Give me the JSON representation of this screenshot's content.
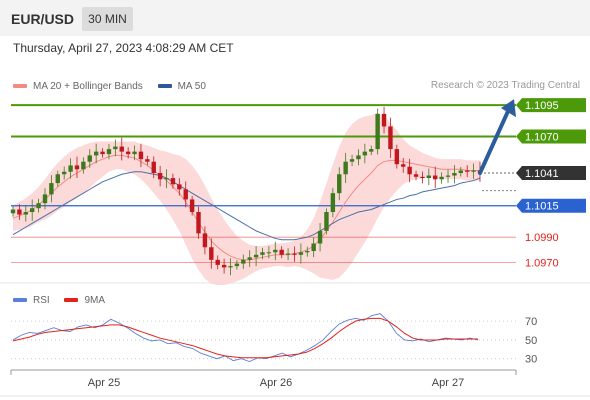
{
  "header": {
    "symbol": "EUR/USD",
    "timeframe": "30 MIN"
  },
  "datetime": "Thursday, April 27, 2023 4:08:29 AM CET",
  "legend": [
    {
      "label": "MA 20 + Bollinger Bands",
      "color": "#f28b82"
    },
    {
      "label": "MA 50",
      "color": "#2f5a99"
    }
  ],
  "credit": "Research © 2023 Trading Central",
  "rsi_legend": [
    {
      "label": "RSI",
      "color": "#5b7fd6"
    },
    {
      "label": "9MA",
      "color": "#e2231a"
    }
  ],
  "colors": {
    "resistance": "#4c9a0a",
    "support": "#2a62d0",
    "minor_support": "#e2231a",
    "current": "#333333",
    "arrow": "#2b5c9c",
    "bull_candle": "#3d7a1d",
    "bear_candle": "#c0181e",
    "bb_fill": "#fbd3d3"
  },
  "chart_data": [
    {
      "type": "candlestick",
      "y_range": [
        1.0952,
        1.1103
      ],
      "x_ticks": [
        "Apr 25",
        "Apr 26",
        "Apr 27"
      ],
      "levels": [
        {
          "value": 1.1095,
          "label": "1.1095",
          "kind": "resistance"
        },
        {
          "value": 1.107,
          "label": "1.1070",
          "kind": "resistance"
        },
        {
          "value": 1.1041,
          "label": "1.1041",
          "kind": "current"
        },
        {
          "value": 1.1015,
          "label": "1.1015",
          "kind": "support"
        },
        {
          "value": 1.099,
          "label": "1.0990",
          "kind": "minor_support"
        },
        {
          "value": 1.097,
          "label": "1.0970",
          "kind": "minor_support"
        }
      ],
      "close_path": [
        1.1012,
        1.1008,
        1.101,
        1.1013,
        1.1017,
        1.1024,
        1.1033,
        1.104,
        1.1042,
        1.1047,
        1.1044,
        1.105,
        1.1055,
        1.1058,
        1.1056,
        1.106,
        1.1062,
        1.1058,
        1.1056,
        1.1058,
        1.1052,
        1.105,
        1.1041,
        1.1036,
        1.1037,
        1.1032,
        1.1028,
        1.102,
        1.101,
        1.0993,
        1.0982,
        1.0972,
        1.0968,
        1.0966,
        1.0967,
        1.0969,
        1.0972,
        1.0974,
        1.0976,
        1.0978,
        1.0978,
        1.098,
        1.0976,
        1.0977,
        1.0976,
        1.0978,
        1.0979,
        1.0985,
        1.0995,
        1.101,
        1.1025,
        1.104,
        1.105,
        1.1052,
        1.1055,
        1.1058,
        1.106,
        1.1088,
        1.1078,
        1.106,
        1.1048,
        1.1046,
        1.104,
        1.1038,
        1.1037,
        1.1039,
        1.1036,
        1.1038,
        1.1039,
        1.1041,
        1.1043,
        1.1042,
        1.1043,
        1.1041
      ],
      "ma20": [
        1.1005,
        1.1007,
        1.1009,
        1.1012,
        1.1016,
        1.102,
        1.1025,
        1.103,
        1.1034,
        1.1038,
        1.1041,
        1.1044,
        1.1047,
        1.105,
        1.1052,
        1.1054,
        1.1055,
        1.1055,
        1.1054,
        1.1053,
        1.105,
        1.1047,
        1.1043,
        1.1039,
        1.1035,
        1.103,
        1.1025,
        1.1018,
        1.101,
        1.1002,
        1.0994,
        1.0987,
        1.0982,
        1.0978,
        1.0975,
        1.0973,
        1.0972,
        1.0972,
        1.0973,
        1.0974,
        1.0975,
        1.0976,
        1.0976,
        1.0976,
        1.0977,
        1.0978,
        1.098,
        1.0983,
        1.0988,
        1.0995,
        1.1002,
        1.101,
        1.1018,
        1.1025,
        1.1031,
        1.1036,
        1.1041,
        1.1047,
        1.105,
        1.1051,
        1.1051,
        1.105,
        1.1049,
        1.1048,
        1.1047,
        1.1046,
        1.1045,
        1.1044,
        1.1044,
        1.1044,
        1.1044,
        1.1043,
        1.1043,
        1.1043
      ],
      "ma50": [
        1.0992,
        1.0995,
        1.0998,
        1.1001,
        1.1004,
        1.1007,
        1.101,
        1.1013,
        1.1016,
        1.1019,
        1.1022,
        1.1025,
        1.1028,
        1.1031,
        1.1034,
        1.1036,
        1.1038,
        1.104,
        1.1041,
        1.1042,
        1.1042,
        1.1041,
        1.104,
        1.1039,
        1.1037,
        1.1034,
        1.1031,
        1.1028,
        1.1025,
        1.1022,
        1.1019,
        1.1016,
        1.1013,
        1.101,
        1.1007,
        1.1004,
        1.1001,
        1.0998,
        1.0995,
        1.0993,
        1.0991,
        1.0989,
        1.0988,
        1.0988,
        1.0988,
        1.0989,
        1.099,
        1.0992,
        1.0995,
        1.0998,
        1.1001,
        1.1004,
        1.1006,
        1.1008,
        1.101,
        1.1011,
        1.1012,
        1.1014,
        1.1016,
        1.1018,
        1.102,
        1.1021,
        1.1023,
        1.1024,
        1.1026,
        1.1027,
        1.1028,
        1.1029,
        1.103,
        1.1031,
        1.1033,
        1.1034,
        1.1035,
        1.1037
      ],
      "bb_width": [
        0.001,
        0.0011,
        0.0012,
        0.0013,
        0.0014,
        0.0016,
        0.0018,
        0.0019,
        0.002,
        0.002,
        0.002,
        0.0019,
        0.0018,
        0.0016,
        0.0014,
        0.0012,
        0.0011,
        0.0011,
        0.0012,
        0.0013,
        0.0014,
        0.0016,
        0.0018,
        0.002,
        0.0023,
        0.0026,
        0.003,
        0.0034,
        0.0037,
        0.0038,
        0.0037,
        0.0034,
        0.003,
        0.0026,
        0.0022,
        0.0018,
        0.0015,
        0.0012,
        0.001,
        0.0009,
        0.0009,
        0.0009,
        0.0009,
        0.001,
        0.001,
        0.0012,
        0.0016,
        0.0022,
        0.003,
        0.0038,
        0.0046,
        0.0052,
        0.0055,
        0.0055,
        0.0053,
        0.005,
        0.0046,
        0.0042,
        0.0036,
        0.003,
        0.0024,
        0.0018,
        0.0014,
        0.0012,
        0.001,
        0.0009,
        0.0008,
        0.0008,
        0.0008,
        0.0008,
        0.0008,
        0.0008,
        0.0008,
        0.0008
      ],
      "projection": {
        "from": 1.1041,
        "to": 1.1095
      }
    },
    {
      "type": "line",
      "title": "RSI",
      "y_range": [
        18,
        84
      ],
      "y_ticks": [
        30,
        50,
        70
      ],
      "series": [
        {
          "name": "RSI",
          "values": [
            50,
            55,
            58,
            57,
            60,
            63,
            60,
            59,
            64,
            66,
            63,
            66,
            72,
            68,
            63,
            57,
            52,
            49,
            50,
            46,
            47,
            43,
            41,
            36,
            33,
            30,
            33,
            28,
            30,
            27,
            31,
            30,
            33,
            36,
            32,
            35,
            39,
            44,
            50,
            59,
            67,
            71,
            73,
            71,
            76,
            78,
            70,
            57,
            50,
            49,
            51,
            48,
            50,
            52,
            51,
            50,
            52,
            50
          ]
        },
        {
          "name": "9MA",
          "values": [
            49,
            51,
            53,
            56,
            58,
            59,
            60,
            61,
            62,
            63,
            64,
            65,
            66,
            66,
            64,
            61,
            58,
            55,
            52,
            50,
            48,
            46,
            44,
            41,
            38,
            35,
            33,
            32,
            31,
            31,
            31,
            31,
            32,
            33,
            34,
            35,
            37,
            41,
            46,
            52,
            59,
            65,
            70,
            72,
            73,
            73,
            70,
            64,
            57,
            52,
            50,
            50,
            50,
            51,
            51,
            51,
            51,
            51
          ]
        }
      ]
    }
  ]
}
